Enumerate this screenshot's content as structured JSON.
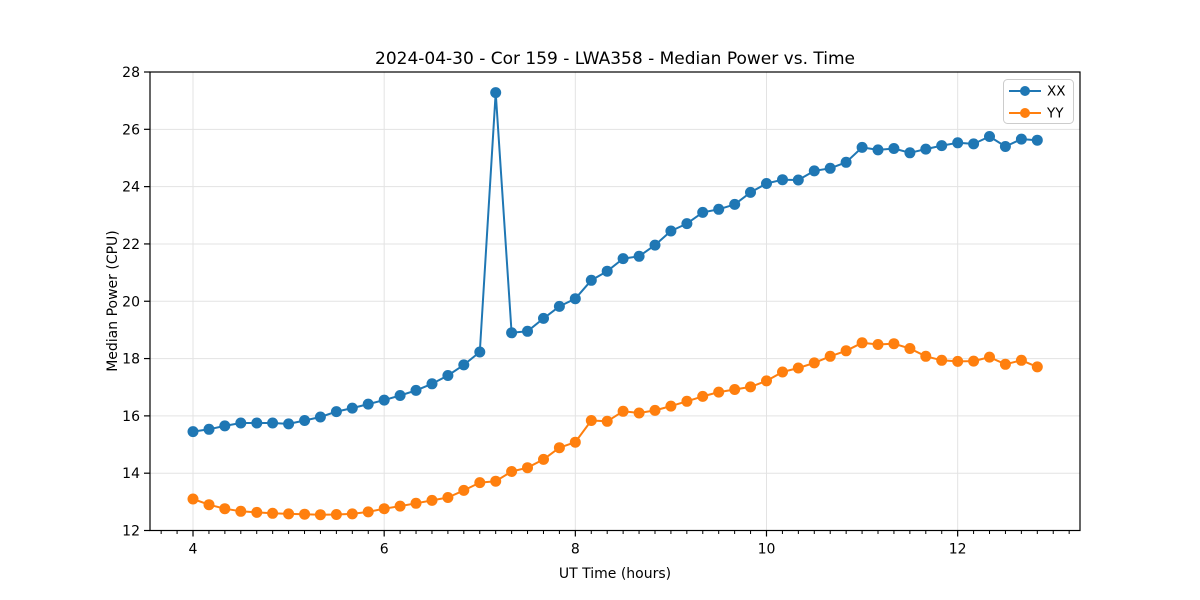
{
  "chart_data": {
    "type": "line",
    "title": "2024-04-30 - Cor 159 - LWA358 - Median Power vs. Time",
    "xlabel": "UT Time (hours)",
    "ylabel": "Median Power (CPU)",
    "xlim": [
      3.55,
      13.28
    ],
    "ylim": [
      12,
      28
    ],
    "x_major_ticks": [
      4,
      6,
      8,
      10,
      12
    ],
    "x_minor_tick_interval_hours": 0.1667,
    "y_major_ticks": [
      12,
      14,
      16,
      18,
      20,
      22,
      24,
      26,
      28
    ],
    "grid": true,
    "grid_color": "#e3e3e3",
    "background_color": "#ffffff",
    "spine_color": "#000000",
    "legend_position": "upper right",
    "x": [
      4.0,
      4.167,
      4.333,
      4.5,
      4.667,
      4.833,
      5.0,
      5.167,
      5.333,
      5.5,
      5.667,
      5.833,
      6.0,
      6.167,
      6.333,
      6.5,
      6.667,
      6.833,
      7.0,
      7.167,
      7.333,
      7.5,
      7.667,
      7.833,
      8.0,
      8.167,
      8.333,
      8.5,
      8.667,
      8.833,
      9.0,
      9.167,
      9.333,
      9.5,
      9.667,
      9.833,
      10.0,
      10.167,
      10.333,
      10.5,
      10.667,
      10.833,
      11.0,
      11.167,
      11.333,
      11.5,
      11.667,
      11.833,
      12.0,
      12.167,
      12.333,
      12.5,
      12.667,
      12.833
    ],
    "series": [
      {
        "name": "XX",
        "color": "#1f77b4",
        "values": [
          15.45,
          15.53,
          15.65,
          15.75,
          15.75,
          15.75,
          15.72,
          15.84,
          15.96,
          16.15,
          16.27,
          16.41,
          16.55,
          16.71,
          16.89,
          17.12,
          17.41,
          17.78,
          18.23,
          27.28,
          18.9,
          18.95,
          19.4,
          19.82,
          20.09,
          20.73,
          21.05,
          21.49,
          21.57,
          21.96,
          22.45,
          22.71,
          23.1,
          23.21,
          23.38,
          23.8,
          24.11,
          24.24,
          24.23,
          24.55,
          24.64,
          24.85,
          25.37,
          25.28,
          25.33,
          25.18,
          25.31,
          25.43,
          25.53,
          25.49,
          25.75,
          25.4,
          25.66,
          25.62
        ]
      },
      {
        "name": "YY",
        "color": "#ff7f0e",
        "values": [
          13.1,
          12.9,
          12.76,
          12.67,
          12.63,
          12.6,
          12.58,
          12.57,
          12.55,
          12.56,
          12.58,
          12.65,
          12.76,
          12.85,
          12.95,
          13.05,
          13.15,
          13.4,
          13.67,
          13.72,
          14.06,
          14.19,
          14.48,
          14.89,
          15.08,
          15.84,
          15.81,
          16.16,
          16.1,
          16.19,
          16.34,
          16.51,
          16.68,
          16.83,
          16.92,
          17.01,
          17.22,
          17.53,
          17.67,
          17.85,
          18.08,
          18.27,
          18.55,
          18.49,
          18.52,
          18.35,
          18.08,
          17.94,
          17.9,
          17.91,
          18.05,
          17.8,
          17.94,
          17.71
        ]
      }
    ]
  }
}
